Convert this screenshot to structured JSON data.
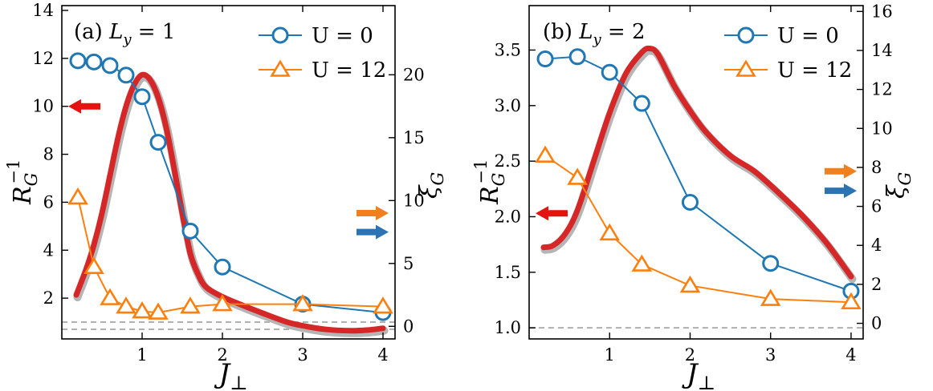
{
  "chart_data": [
    {
      "type": "line",
      "panel": "(a)",
      "title_prefix": "(a)",
      "title_var": "L",
      "title_sub": "y",
      "title_eq": "= 1",
      "xlabel": "J",
      "xlabel_sub": "⊥",
      "ylabel_left": "R",
      "ylabel_left_sub": "G",
      "ylabel_left_sup": "−1",
      "ylabel_right": "ξ",
      "ylabel_right_sub": "G",
      "xlim": [
        0,
        4.15
      ],
      "xticks": [
        1,
        2,
        3,
        4
      ],
      "ylim_left": [
        0.3,
        14.2
      ],
      "yticks_left": [
        2,
        4,
        6,
        8,
        10,
        12,
        14
      ],
      "ylim_right": [
        -1,
        25.5
      ],
      "yticks_right": [
        0,
        5,
        10,
        15,
        20
      ],
      "legend": [
        {
          "label": "U = 0",
          "color": "#1f77b4",
          "marker": "circle"
        },
        {
          "label": "U = 12",
          "color": "#ff7f0e",
          "marker": "triangle"
        }
      ],
      "series": [
        {
          "name": "U = 0",
          "axis": "left",
          "color": "#1f77b4",
          "marker": "circle",
          "x": [
            0.2,
            0.4,
            0.6,
            0.8,
            1.0,
            1.2,
            1.6,
            2.0,
            3.0,
            4.0
          ],
          "y": [
            11.9,
            11.85,
            11.7,
            11.3,
            10.4,
            8.5,
            4.8,
            3.3,
            1.75,
            1.4
          ]
        },
        {
          "name": "U = 12",
          "axis": "left",
          "color": "#ff7f0e",
          "marker": "triangle",
          "x": [
            0.2,
            0.4,
            0.6,
            0.8,
            1.0,
            1.2,
            1.6,
            2.0,
            3.0,
            4.0
          ],
          "y": [
            6.2,
            3.3,
            2.0,
            1.65,
            1.45,
            1.4,
            1.65,
            1.75,
            1.75,
            1.65
          ]
        },
        {
          "name": "ξ_G",
          "axis": "right",
          "color": "#d62728",
          "marker": "none",
          "x": [
            0.18,
            0.3,
            0.4,
            0.5,
            0.6,
            0.7,
            0.8,
            0.9,
            1.0,
            1.1,
            1.2,
            1.3,
            1.4,
            1.5,
            1.6,
            1.7,
            1.8,
            2.0,
            2.2,
            2.5,
            2.8,
            3.0,
            3.3,
            3.6,
            3.8,
            4.0
          ],
          "y": [
            2.5,
            4.5,
            6.5,
            9.0,
            12.0,
            15.0,
            17.5,
            19.2,
            20.0,
            19.6,
            18.2,
            15.8,
            12.5,
            9.0,
            5.8,
            4.1,
            3.1,
            2.35,
            1.8,
            1.05,
            0.35,
            0.05,
            -0.25,
            -0.35,
            -0.3,
            -0.15
          ]
        }
      ],
      "reference_lines_left": [
        1.0,
        0.7
      ],
      "arrows": [
        {
          "axis": "left",
          "value": 10.0,
          "direction": "left",
          "color": "#e3140f"
        },
        {
          "axis": "right",
          "value": 9.0,
          "direction": "right",
          "color": "#f07f1e"
        },
        {
          "axis": "right",
          "value": 7.5,
          "direction": "right",
          "color": "#2c73b4"
        }
      ]
    },
    {
      "type": "line",
      "panel": "(b)",
      "title_prefix": "(b)",
      "title_var": "L",
      "title_sub": "y",
      "title_eq": "= 2",
      "xlabel": "J",
      "xlabel_sub": "⊥",
      "ylabel_left": "R",
      "ylabel_left_sub": "G",
      "ylabel_left_sup": "−1",
      "ylabel_right": "ξ",
      "ylabel_right_sub": "G",
      "xlim": [
        0,
        4.15
      ],
      "xticks": [
        1,
        2,
        3,
        4
      ],
      "ylim_left": [
        0.9,
        3.9
      ],
      "yticks_left": [
        1.0,
        1.5,
        2.0,
        2.5,
        3.0,
        3.5
      ],
      "ylim_right": [
        -0.8,
        16.3
      ],
      "yticks_right": [
        0,
        2,
        4,
        6,
        8,
        10,
        12,
        14,
        16
      ],
      "legend": [
        {
          "label": "U = 0",
          "color": "#1f77b4",
          "marker": "circle"
        },
        {
          "label": "U = 12",
          "color": "#ff7f0e",
          "marker": "triangle"
        }
      ],
      "series": [
        {
          "name": "U = 0",
          "axis": "left",
          "color": "#1f77b4",
          "marker": "circle",
          "x": [
            0.2,
            0.6,
            1.0,
            1.4,
            2.0,
            3.0,
            4.0
          ],
          "y": [
            3.42,
            3.44,
            3.3,
            3.02,
            2.13,
            1.58,
            1.33
          ]
        },
        {
          "name": "U = 12",
          "axis": "left",
          "color": "#ff7f0e",
          "marker": "triangle",
          "x": [
            0.2,
            0.6,
            1.0,
            1.4,
            2.0,
            3.0,
            4.0
          ],
          "y": [
            2.55,
            2.35,
            1.85,
            1.57,
            1.38,
            1.26,
            1.23
          ]
        },
        {
          "name": "ξ_G",
          "axis": "right",
          "color": "#d62728",
          "marker": "none",
          "x": [
            0.18,
            0.3,
            0.45,
            0.6,
            0.8,
            1.0,
            1.2,
            1.4,
            1.5,
            1.6,
            1.8,
            2.0,
            2.2,
            2.5,
            2.8,
            3.1,
            3.4,
            3.7,
            4.0
          ],
          "y": [
            3.9,
            4.0,
            4.6,
            5.8,
            8.3,
            10.8,
            12.8,
            13.9,
            14.1,
            13.8,
            12.2,
            10.9,
            9.8,
            8.6,
            7.8,
            6.7,
            5.5,
            4.1,
            2.4
          ]
        }
      ],
      "reference_lines_left": [
        1.0
      ],
      "arrows": [
        {
          "axis": "left",
          "value": 2.03,
          "direction": "left",
          "color": "#e3140f"
        },
        {
          "axis": "right",
          "value": 7.8,
          "direction": "right",
          "color": "#f07f1e"
        },
        {
          "axis": "right",
          "value": 6.8,
          "direction": "right",
          "color": "#2c73b4"
        }
      ]
    }
  ]
}
